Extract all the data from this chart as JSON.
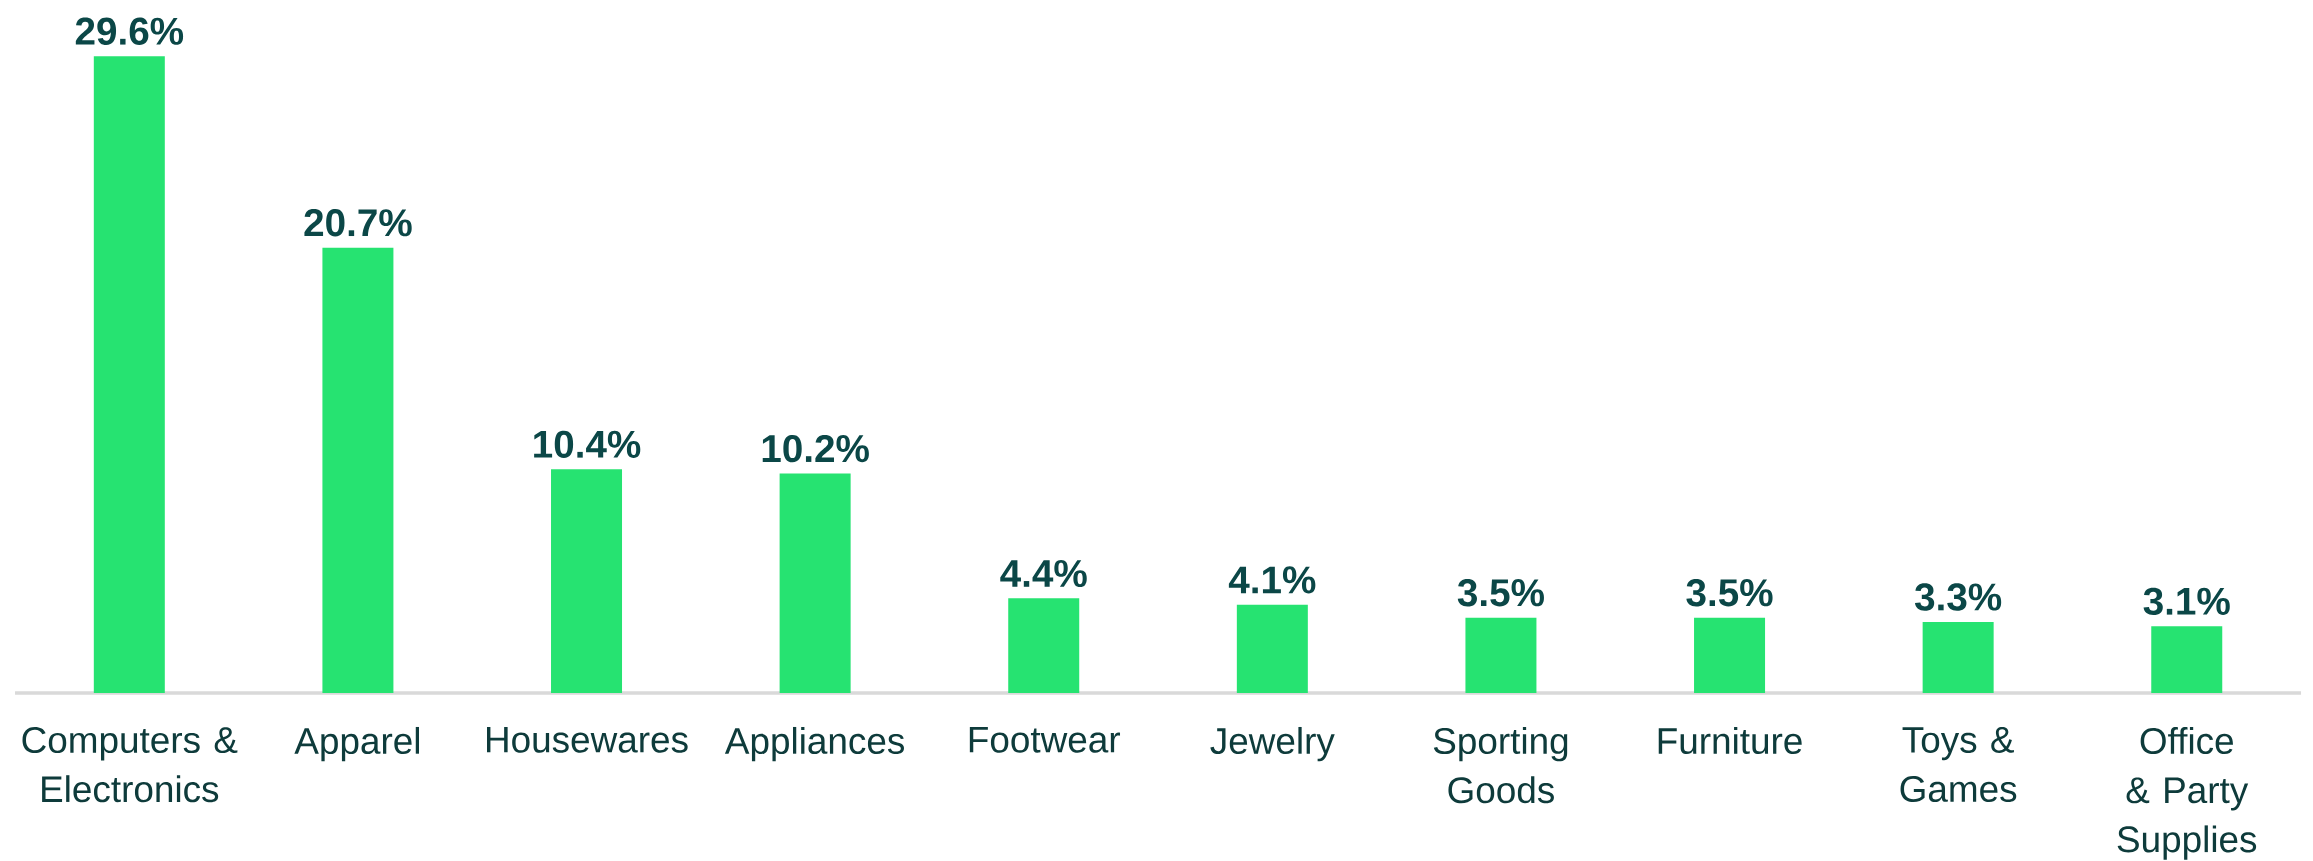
{
  "chart_data": {
    "type": "bar",
    "categories": [
      "Computers & Electronics",
      "Apparel",
      "Housewares",
      "Appliances",
      "Footwear",
      "Jewelry",
      "Sporting Goods",
      "Furniture",
      "Toys & Games",
      "Office & Party Supplies"
    ],
    "values": [
      29.6,
      20.7,
      10.4,
      10.2,
      4.4,
      4.1,
      3.5,
      3.5,
      3.3,
      3.1
    ],
    "value_labels": [
      "29.6%",
      "20.7%",
      "10.4%",
      "10.2%",
      "4.4%",
      "4.1%",
      "3.5%",
      "3.5%",
      "3.3%",
      "3.1%"
    ],
    "color": "#26e371",
    "tick_labels": "x"
  }
}
